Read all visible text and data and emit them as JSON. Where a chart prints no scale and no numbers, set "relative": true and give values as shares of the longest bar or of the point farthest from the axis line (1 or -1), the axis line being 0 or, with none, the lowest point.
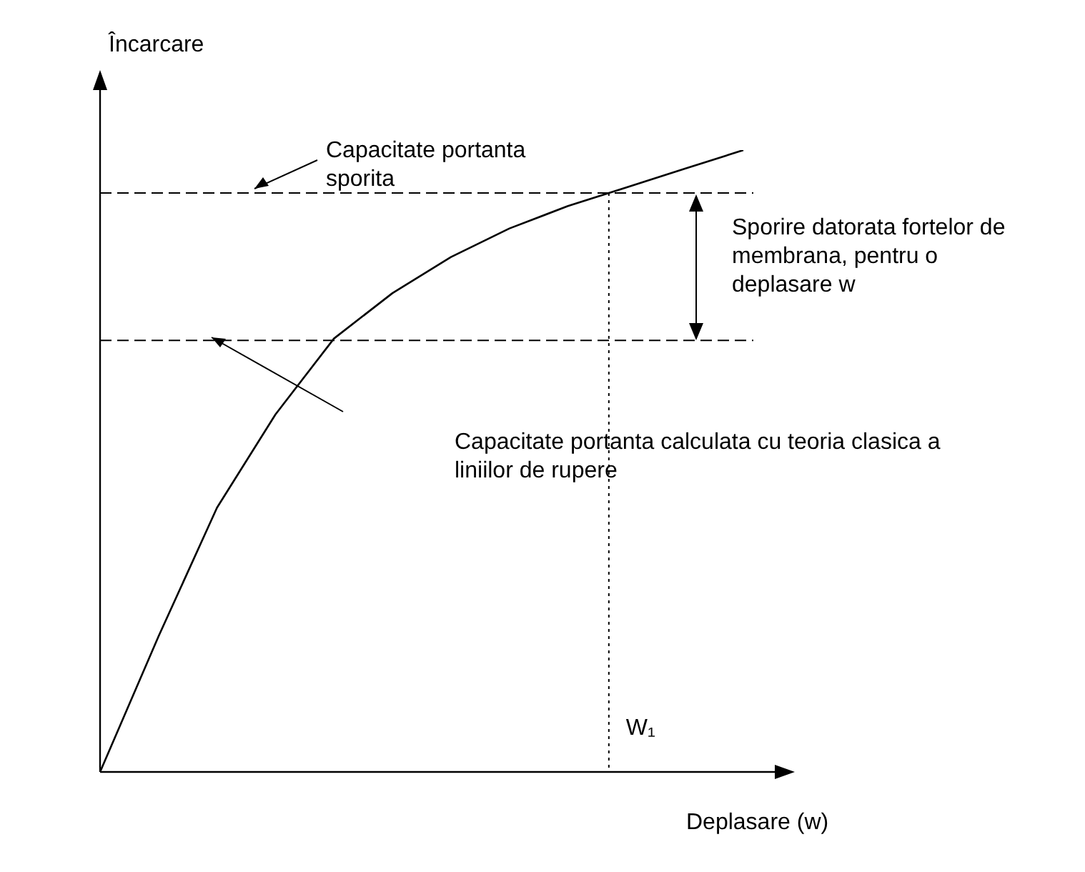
{
  "chart_data": {
    "type": "line",
    "relative": true,
    "xlabel": "Deplasare (w)",
    "ylabel": "Încarcare",
    "legend": false,
    "marker": "none",
    "categories": [
      null,
      null,
      null,
      null,
      null,
      null,
      null,
      null,
      null,
      null,
      null,
      null
    ],
    "series": [
      {
        "color": "#000000",
        "values": [
          0,
          0.218,
          0.425,
          0.575,
          0.697,
          0.77,
          0.828,
          0.874,
          0.91,
          0.94,
          0.97,
          1
        ]
      }
    ],
    "ref_lines": [
      {
        "axis": "y",
        "value": 0.931,
        "color": "#000000",
        "line_style": "dashed"
      },
      {
        "axis": "y",
        "value": 0.694,
        "color": "#000000",
        "line_style": "dashed"
      }
    ],
    "annotations": [
      "Capacitate portanta sporita",
      "Sporire datorata fortelor de membrana, pentru o deplasare w",
      "Capacitate portanta calculata cu teoria clasica a liniilor de rupere",
      "W₁"
    ]
  }
}
